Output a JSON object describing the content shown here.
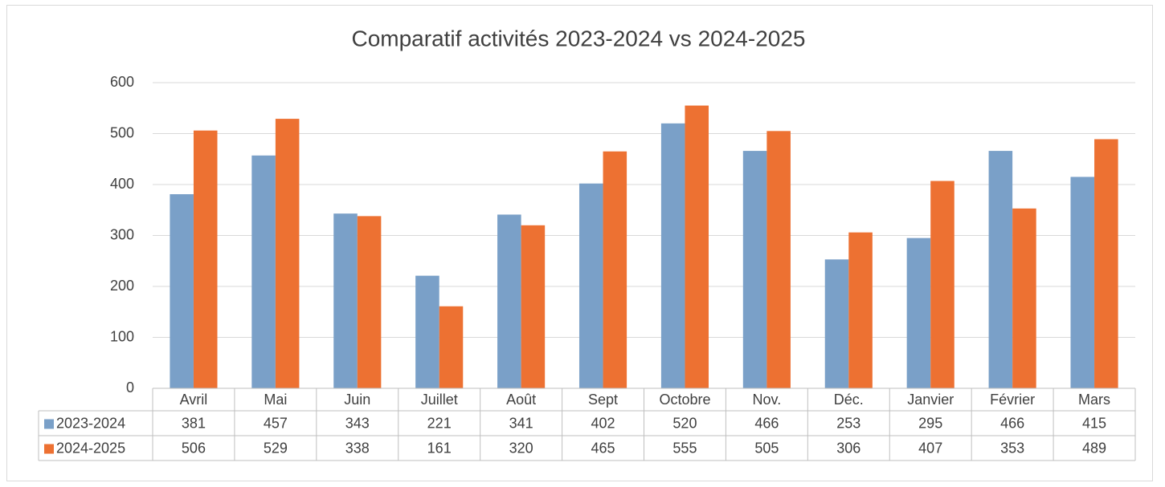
{
  "chart_data": {
    "type": "bar",
    "title": "Comparatif activités 2023-2024 vs 2024-2025",
    "categories": [
      "Avril",
      "Mai",
      "Juin",
      "Juillet",
      "Août",
      "Sept",
      "Octobre",
      "Nov.",
      "Déc.",
      "Janvier",
      "Février",
      "Mars"
    ],
    "series": [
      {
        "name": "2023-2024",
        "color": "#7aa0c8",
        "values": [
          381,
          457,
          343,
          221,
          341,
          402,
          520,
          466,
          253,
          295,
          466,
          415
        ]
      },
      {
        "name": "2024-2025",
        "color": "#ed7132",
        "values": [
          506,
          529,
          338,
          161,
          320,
          465,
          555,
          505,
          306,
          407,
          353,
          489
        ]
      }
    ],
    "ylim": [
      0,
      600
    ],
    "yticks": [
      0,
      100,
      200,
      300,
      400,
      500,
      600
    ],
    "grid": true,
    "data_table": true
  }
}
